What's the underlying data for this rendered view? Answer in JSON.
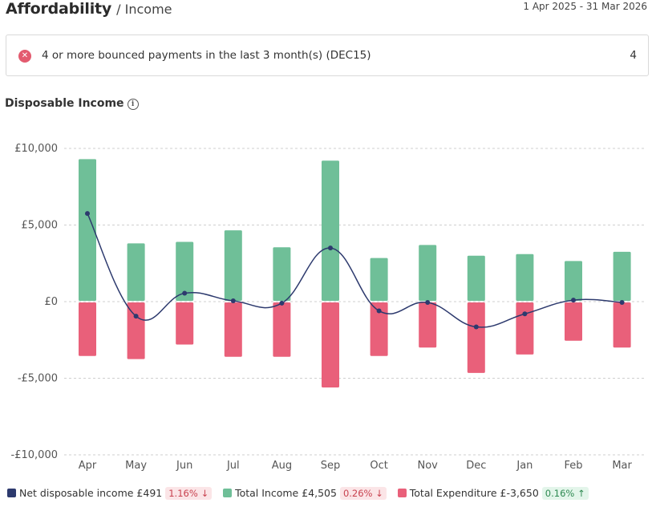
{
  "header": {
    "title": "Affordability",
    "breadcrumb": "/ Income",
    "date_range": "1 Apr 2025 - 31 Mar 2026"
  },
  "alert": {
    "icon": "close-circle-icon",
    "text": "4 or more bounced payments in the last 3 month(s) (DEC15)",
    "count": "4",
    "color": "#e35b6f"
  },
  "section": {
    "title": "Disposable Income",
    "info_icon": "info-icon"
  },
  "legend": {
    "net": {
      "label": "Net disposable income £491",
      "change": "1.16%",
      "arrow": "↓",
      "direction": "down",
      "color": "#2d3a6e"
    },
    "income": {
      "label": "Total Income £4,505",
      "change": "0.26%",
      "arrow": "↓",
      "direction": "down",
      "color": "#6fbf98"
    },
    "expenditure": {
      "label": "Total Expenditure £-3,650",
      "change": "0.16%",
      "arrow": "↑",
      "direction": "up",
      "color": "#e9607a"
    }
  },
  "chart_data": {
    "type": "bar",
    "categories": [
      "Apr",
      "May",
      "Jun",
      "Jul",
      "Aug",
      "Sep",
      "Oct",
      "Nov",
      "Dec",
      "Jan",
      "Feb",
      "Mar"
    ],
    "series": [
      {
        "name": "Total Income",
        "kind": "bar",
        "color": "#6fbf98",
        "values": [
          9300,
          3800,
          3900,
          4650,
          3550,
          9200,
          2850,
          3700,
          3000,
          3100,
          2650,
          3250
        ]
      },
      {
        "name": "Total Expenditure",
        "kind": "bar",
        "color": "#e9607a",
        "values": [
          -3550,
          -3750,
          -2800,
          -3600,
          -3600,
          -5600,
          -3550,
          -3000,
          -4650,
          -3450,
          -2550,
          -3000
        ]
      },
      {
        "name": "Net disposable income",
        "kind": "line",
        "color": "#2d3a6e",
        "values": [
          5750,
          -950,
          550,
          50,
          -100,
          3500,
          -600,
          -50,
          -1650,
          -800,
          100,
          -50
        ]
      }
    ],
    "yticks": [
      "£10,000",
      "£5,000",
      "£0",
      "-£5,000",
      "-£10,000"
    ],
    "ytick_values": [
      10000,
      5000,
      0,
      -5000,
      -10000
    ],
    "ylim": [
      -10000,
      10000
    ],
    "grid": true,
    "legend_position": "bottom"
  }
}
